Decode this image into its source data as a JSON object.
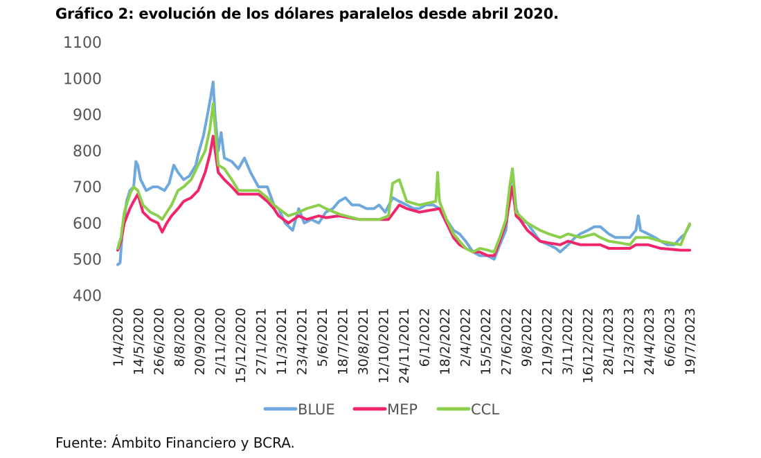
{
  "title": "Gráfico 2: evolución de los dólares paralelos desde abril 2020.",
  "source": "Fuente: Ámbito Financiero y BCRA.",
  "chart_data": {
    "type": "line",
    "title": "Gráfico 2: evolución de los dólares paralelos desde abril 2020.",
    "xlabel": "",
    "ylabel": "",
    "ylim": [
      400,
      1100
    ],
    "yticks": [
      400,
      500,
      600,
      700,
      800,
      900,
      1000,
      1100
    ],
    "grid": false,
    "legend_position": "bottom",
    "x_start": "1/4/2020",
    "x_end": "7/8/2023",
    "xtick_labels": [
      "1/4/2020",
      "14/5/2020",
      "26/6/2020",
      "8/8/2020",
      "20/9/2020",
      "2/11/2020",
      "15/12/2020",
      "27/1/2021",
      "11/3/2021",
      "23/4/2021",
      "5/6/2021",
      "18/7/2021",
      "30/8/2021",
      "12/10/2021",
      "24/11/2021",
      "6/1/2022",
      "18/2/2022",
      "2/4/2022",
      "15/5/2022",
      "27/6/2022",
      "9/8/2022",
      "21/9/2022",
      "3/11/2022",
      "16/12/2022",
      "28/1/2023",
      "12/3/2023",
      "24/4/2023",
      "6/6/2023",
      "19/7/2023"
    ],
    "series": [
      {
        "name": "BLUE",
        "color": "#6fa8dc",
        "points": [
          [
            "1/4/2020",
            485
          ],
          [
            "6/4/2020",
            490
          ],
          [
            "10/4/2020",
            560
          ],
          [
            "15/4/2020",
            610
          ],
          [
            "20/4/2020",
            660
          ],
          [
            "27/4/2020",
            690
          ],
          [
            "5/5/2020",
            700
          ],
          [
            "10/5/2020",
            770
          ],
          [
            "14/5/2020",
            760
          ],
          [
            "20/5/2020",
            720
          ],
          [
            "1/6/2020",
            690
          ],
          [
            "15/6/2020",
            700
          ],
          [
            "26/6/2020",
            700
          ],
          [
            "10/7/2020",
            690
          ],
          [
            "20/7/2020",
            710
          ],
          [
            "30/7/2020",
            760
          ],
          [
            "8/8/2020",
            740
          ],
          [
            "20/8/2020",
            720
          ],
          [
            "1/9/2020",
            730
          ],
          [
            "15/9/2020",
            760
          ],
          [
            "20/9/2020",
            790
          ],
          [
            "1/10/2020",
            840
          ],
          [
            "10/10/2020",
            900
          ],
          [
            "17/10/2020",
            950
          ],
          [
            "22/10/2020",
            990
          ],
          [
            "26/10/2020",
            900
          ],
          [
            "2/11/2020",
            800
          ],
          [
            "8/11/2020",
            850
          ],
          [
            "15/11/2020",
            780
          ],
          [
            "1/12/2020",
            770
          ],
          [
            "15/12/2020",
            750
          ],
          [
            "28/12/2020",
            780
          ],
          [
            "10/1/2021",
            740
          ],
          [
            "27/1/2021",
            700
          ],
          [
            "15/2/2021",
            700
          ],
          [
            "1/3/2021",
            650
          ],
          [
            "11/3/2021",
            640
          ],
          [
            "25/3/2021",
            600
          ],
          [
            "10/4/2021",
            580
          ],
          [
            "23/4/2021",
            640
          ],
          [
            "5/5/2021",
            600
          ],
          [
            "20/5/2021",
            610
          ],
          [
            "5/6/2021",
            600
          ],
          [
            "20/6/2021",
            630
          ],
          [
            "5/7/2021",
            640
          ],
          [
            "18/7/2021",
            660
          ],
          [
            "1/8/2021",
            670
          ],
          [
            "15/8/2021",
            650
          ],
          [
            "30/8/2021",
            650
          ],
          [
            "15/9/2021",
            640
          ],
          [
            "1/10/2021",
            640
          ],
          [
            "12/10/2021",
            650
          ],
          [
            "25/10/2021",
            630
          ],
          [
            "10/11/2021",
            670
          ],
          [
            "24/11/2021",
            660
          ],
          [
            "10/12/2021",
            650
          ],
          [
            "25/12/2021",
            640
          ],
          [
            "6/1/2022",
            640
          ],
          [
            "20/1/2022",
            650
          ],
          [
            "5/2/2022",
            650
          ],
          [
            "18/2/2022",
            640
          ],
          [
            "5/3/2022",
            610
          ],
          [
            "20/3/2022",
            580
          ],
          [
            "2/4/2022",
            570
          ],
          [
            "15/4/2022",
            550
          ],
          [
            "1/5/2022",
            520
          ],
          [
            "15/5/2022",
            510
          ],
          [
            "1/6/2022",
            510
          ],
          [
            "15/6/2022",
            500
          ],
          [
            "27/6/2022",
            540
          ],
          [
            "10/7/2022",
            580
          ],
          [
            "18/7/2022",
            680
          ],
          [
            "24/7/2022",
            750
          ],
          [
            "1/8/2022",
            640
          ],
          [
            "9/8/2022",
            610
          ],
          [
            "25/8/2022",
            600
          ],
          [
            "10/9/2022",
            570
          ],
          [
            "21/9/2022",
            550
          ],
          [
            "10/10/2022",
            540
          ],
          [
            "25/10/2022",
            530
          ],
          [
            "3/11/2022",
            520
          ],
          [
            "20/11/2022",
            540
          ],
          [
            "5/12/2022",
            560
          ],
          [
            "16/12/2022",
            570
          ],
          [
            "1/1/2023",
            580
          ],
          [
            "15/1/2023",
            590
          ],
          [
            "28/1/2023",
            590
          ],
          [
            "15/2/2023",
            570
          ],
          [
            "1/3/2023",
            560
          ],
          [
            "12/3/2023",
            560
          ],
          [
            "1/4/2023",
            560
          ],
          [
            "14/4/2023",
            580
          ],
          [
            "19/4/2023",
            620
          ],
          [
            "24/4/2023",
            580
          ],
          [
            "10/5/2023",
            570
          ],
          [
            "25/5/2023",
            560
          ],
          [
            "6/6/2023",
            550
          ],
          [
            "20/6/2023",
            540
          ],
          [
            "5/7/2023",
            540
          ],
          [
            "19/7/2023",
            560
          ],
          [
            "28/7/2023",
            570
          ],
          [
            "7/8/2023",
            595
          ]
        ]
      },
      {
        "name": "MEP",
        "color": "#f0256c",
        "points": [
          [
            "1/4/2020",
            525
          ],
          [
            "8/4/2020",
            550
          ],
          [
            "15/4/2020",
            600
          ],
          [
            "27/4/2020",
            640
          ],
          [
            "5/5/2020",
            660
          ],
          [
            "14/5/2020",
            680
          ],
          [
            "25/5/2020",
            630
          ],
          [
            "10/6/2020",
            610
          ],
          [
            "26/6/2020",
            600
          ],
          [
            "5/7/2020",
            575
          ],
          [
            "15/7/2020",
            600
          ],
          [
            "25/7/2020",
            620
          ],
          [
            "8/8/2020",
            640
          ],
          [
            "20/8/2020",
            660
          ],
          [
            "5/9/2020",
            670
          ],
          [
            "20/9/2020",
            690
          ],
          [
            "5/10/2020",
            740
          ],
          [
            "15/10/2020",
            790
          ],
          [
            "22/10/2020",
            840
          ],
          [
            "2/11/2020",
            740
          ],
          [
            "15/11/2020",
            720
          ],
          [
            "1/12/2020",
            700
          ],
          [
            "15/12/2020",
            680
          ],
          [
            "1/1/2021",
            680
          ],
          [
            "27/1/2021",
            680
          ],
          [
            "15/2/2021",
            660
          ],
          [
            "1/3/2021",
            640
          ],
          [
            "11/3/2021",
            620
          ],
          [
            "1/4/2021",
            600
          ],
          [
            "23/4/2021",
            620
          ],
          [
            "10/5/2021",
            610
          ],
          [
            "5/6/2021",
            620
          ],
          [
            "20/6/2021",
            615
          ],
          [
            "18/7/2021",
            620
          ],
          [
            "30/8/2021",
            610
          ],
          [
            "12/10/2021",
            610
          ],
          [
            "1/11/2021",
            610
          ],
          [
            "24/11/2021",
            650
          ],
          [
            "10/12/2021",
            640
          ],
          [
            "6/1/2022",
            630
          ],
          [
            "18/2/2022",
            640
          ],
          [
            "5/3/2022",
            600
          ],
          [
            "20/3/2022",
            560
          ],
          [
            "2/4/2022",
            540
          ],
          [
            "15/4/2022",
            530
          ],
          [
            "1/5/2022",
            520
          ],
          [
            "15/5/2022",
            520
          ],
          [
            "1/6/2022",
            510
          ],
          [
            "15/6/2022",
            510
          ],
          [
            "27/6/2022",
            550
          ],
          [
            "10/7/2022",
            600
          ],
          [
            "18/7/2022",
            660
          ],
          [
            "24/7/2022",
            700
          ],
          [
            "1/8/2022",
            620
          ],
          [
            "9/8/2022",
            610
          ],
          [
            "25/8/2022",
            580
          ],
          [
            "21/9/2022",
            550
          ],
          [
            "10/10/2022",
            545
          ],
          [
            "3/11/2022",
            540
          ],
          [
            "20/11/2022",
            550
          ],
          [
            "16/12/2022",
            540
          ],
          [
            "15/1/2023",
            540
          ],
          [
            "28/1/2023",
            540
          ],
          [
            "15/2/2023",
            530
          ],
          [
            "12/3/2023",
            530
          ],
          [
            "1/4/2023",
            530
          ],
          [
            "14/4/2023",
            540
          ],
          [
            "24/4/2023",
            540
          ],
          [
            "10/5/2023",
            540
          ],
          [
            "6/6/2023",
            530
          ],
          [
            "19/7/2023",
            525
          ],
          [
            "7/8/2023",
            525
          ]
        ]
      },
      {
        "name": "CCL",
        "color": "#8ccf4d",
        "points": [
          [
            "1/4/2020",
            530
          ],
          [
            "8/4/2020",
            560
          ],
          [
            "15/4/2020",
            630
          ],
          [
            "27/4/2020",
            680
          ],
          [
            "5/5/2020",
            700
          ],
          [
            "14/5/2020",
            690
          ],
          [
            "25/5/2020",
            650
          ],
          [
            "10/6/2020",
            630
          ],
          [
            "26/6/2020",
            620
          ],
          [
            "5/7/2020",
            610
          ],
          [
            "15/7/2020",
            630
          ],
          [
            "25/7/2020",
            650
          ],
          [
            "8/8/2020",
            690
          ],
          [
            "20/8/2020",
            700
          ],
          [
            "5/9/2020",
            720
          ],
          [
            "20/9/2020",
            760
          ],
          [
            "5/10/2020",
            800
          ],
          [
            "15/10/2020",
            860
          ],
          [
            "22/10/2020",
            930
          ],
          [
            "2/11/2020",
            760
          ],
          [
            "15/11/2020",
            750
          ],
          [
            "1/12/2020",
            720
          ],
          [
            "15/12/2020",
            690
          ],
          [
            "1/1/2021",
            690
          ],
          [
            "27/1/2021",
            690
          ],
          [
            "15/2/2021",
            670
          ],
          [
            "1/3/2021",
            650
          ],
          [
            "11/3/2021",
            640
          ],
          [
            "1/4/2021",
            620
          ],
          [
            "23/4/2021",
            630
          ],
          [
            "10/5/2021",
            640
          ],
          [
            "5/6/2021",
            650
          ],
          [
            "20/6/2021",
            640
          ],
          [
            "18/7/2021",
            625
          ],
          [
            "30/8/2021",
            610
          ],
          [
            "12/10/2021",
            610
          ],
          [
            "1/11/2021",
            620
          ],
          [
            "10/11/2021",
            710
          ],
          [
            "24/11/2021",
            720
          ],
          [
            "10/12/2021",
            660
          ],
          [
            "6/1/2022",
            650
          ],
          [
            "10/2/2022",
            660
          ],
          [
            "14/2/2022",
            740
          ],
          [
            "18/2/2022",
            660
          ],
          [
            "5/3/2022",
            610
          ],
          [
            "20/3/2022",
            570
          ],
          [
            "2/4/2022",
            550
          ],
          [
            "15/4/2022",
            530
          ],
          [
            "1/5/2022",
            520
          ],
          [
            "15/5/2022",
            530
          ],
          [
            "1/6/2022",
            525
          ],
          [
            "15/6/2022",
            520
          ],
          [
            "27/6/2022",
            560
          ],
          [
            "10/7/2022",
            610
          ],
          [
            "18/7/2022",
            700
          ],
          [
            "24/7/2022",
            750
          ],
          [
            "1/8/2022",
            630
          ],
          [
            "9/8/2022",
            620
          ],
          [
            "25/8/2022",
            600
          ],
          [
            "21/9/2022",
            580
          ],
          [
            "10/10/2022",
            570
          ],
          [
            "3/11/2022",
            560
          ],
          [
            "20/11/2022",
            570
          ],
          [
            "16/12/2022",
            560
          ],
          [
            "15/1/2023",
            570
          ],
          [
            "28/1/2023",
            560
          ],
          [
            "15/2/2023",
            550
          ],
          [
            "12/3/2023",
            545
          ],
          [
            "1/4/2023",
            540
          ],
          [
            "14/4/2023",
            560
          ],
          [
            "24/4/2023",
            560
          ],
          [
            "10/5/2023",
            560
          ],
          [
            "6/6/2023",
            550
          ],
          [
            "19/7/2023",
            540
          ],
          [
            "28/7/2023",
            570
          ],
          [
            "7/8/2023",
            598
          ]
        ]
      }
    ]
  }
}
